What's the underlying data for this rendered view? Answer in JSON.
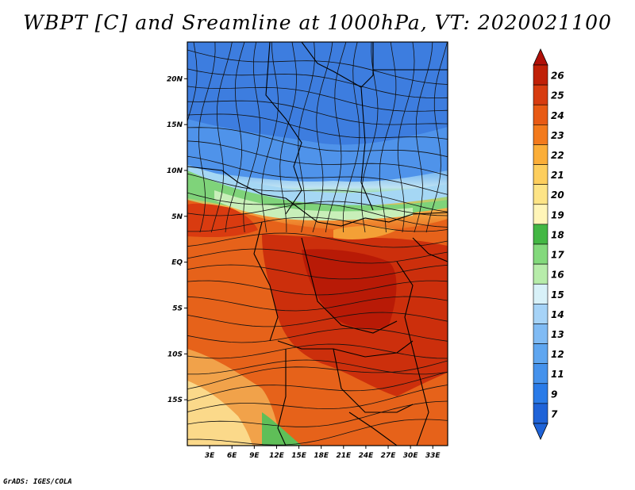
{
  "title": "WBPT [C] and Sreamline at 1000hPa, VT: 2020021100",
  "credit": "GrADS: IGES/COLA",
  "map": {
    "lon_range": [
      0,
      35
    ],
    "lat_range": [
      -20,
      24
    ],
    "x_ticks": [
      {
        "value": 3,
        "label": "3E"
      },
      {
        "value": 6,
        "label": "6E"
      },
      {
        "value": 9,
        "label": "9E"
      },
      {
        "value": 12,
        "label": "12E"
      },
      {
        "value": 15,
        "label": "15E"
      },
      {
        "value": 18,
        "label": "18E"
      },
      {
        "value": 21,
        "label": "21E"
      },
      {
        "value": 24,
        "label": "24E"
      },
      {
        "value": 27,
        "label": "27E"
      },
      {
        "value": 30,
        "label": "30E"
      },
      {
        "value": 33,
        "label": "33E"
      }
    ],
    "y_ticks": [
      {
        "value": 20,
        "label": "20N"
      },
      {
        "value": 15,
        "label": "15N"
      },
      {
        "value": 10,
        "label": "10N"
      },
      {
        "value": 5,
        "label": "5N"
      },
      {
        "value": 0,
        "label": "EQ"
      },
      {
        "value": -5,
        "label": "5S"
      },
      {
        "value": -10,
        "label": "10S"
      },
      {
        "value": -15,
        "label": "15S"
      }
    ]
  },
  "colorbar": {
    "levels": [
      "7",
      "9",
      "11",
      "12",
      "13",
      "14",
      "15",
      "16",
      "17",
      "18",
      "19",
      "20",
      "21",
      "22",
      "23",
      "24",
      "25",
      "26"
    ],
    "colors": [
      "#1f63d8",
      "#2a7be8",
      "#4592ec",
      "#5fa6f0",
      "#80bbf4",
      "#a6d3f7",
      "#d8f1f8",
      "#b7ecaa",
      "#83d97c",
      "#43b744",
      "#fff5b8",
      "#fde486",
      "#fdce5d",
      "#fbae38",
      "#f37a1c",
      "#e85a14",
      "#d73c10",
      "#c02007"
    ],
    "low_color": "#1f63d8",
    "high_color": "#b01008"
  }
}
